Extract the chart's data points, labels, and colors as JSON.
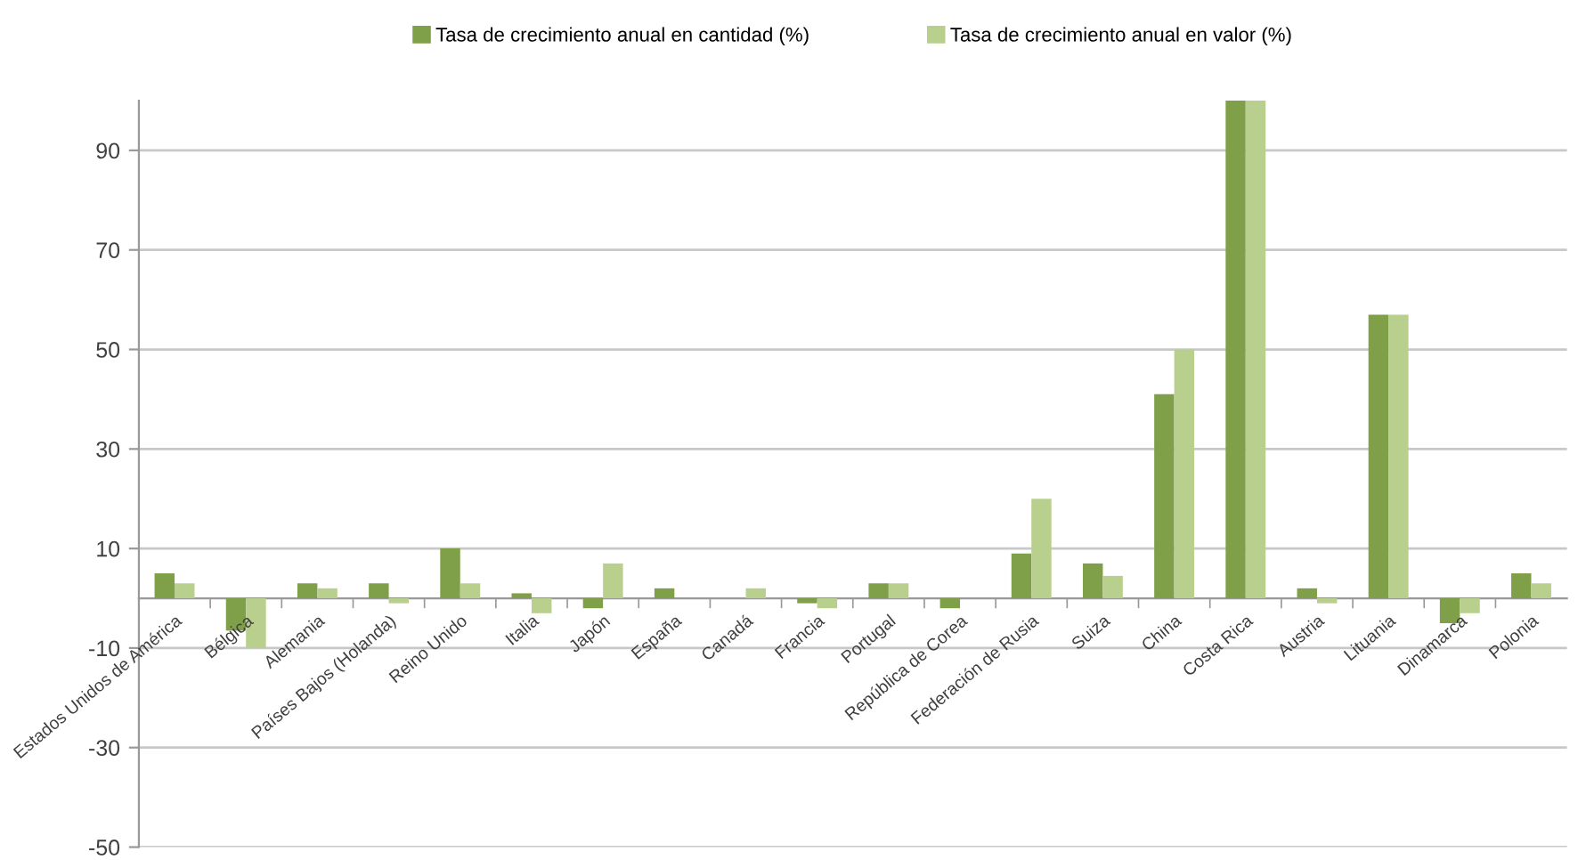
{
  "chart_data": {
    "type": "bar",
    "categories": [
      "Estados Unidos de América",
      "Bélgica",
      "Alemania",
      "Países Bajos (Holanda)",
      "Reino Unido",
      "Italia",
      "Japón",
      "España",
      "Canadá",
      "Francia",
      "Portugal",
      "República de Corea",
      "Federación de Rusia",
      "Suiza",
      "China",
      "Costa Rica",
      "Austria",
      "Lituania",
      "Dinamarca",
      "Polonia"
    ],
    "series": [
      {
        "name": "Tasa de crecimiento anual en cantidad (%)",
        "color": "#7f9f48",
        "values": [
          5,
          -6.5,
          3,
          3,
          10,
          1,
          -2,
          2,
          0,
          -1,
          3,
          -2,
          9,
          7,
          41,
          100,
          2,
          57,
          -5,
          5
        ]
      },
      {
        "name": "Tasa de crecimiento anual en valor (%)",
        "color": "#b8cf8e",
        "values": [
          3,
          -10,
          2,
          -1,
          3,
          -3,
          7,
          0,
          2,
          -2,
          3,
          0,
          20,
          4.5,
          50,
          100,
          -1,
          57,
          -3,
          3
        ]
      }
    ],
    "ylim": [
      -50,
      100
    ],
    "yticks": [
      -50,
      -30,
      -10,
      10,
      30,
      50,
      70,
      90
    ],
    "grid": "y",
    "legend": "top"
  }
}
